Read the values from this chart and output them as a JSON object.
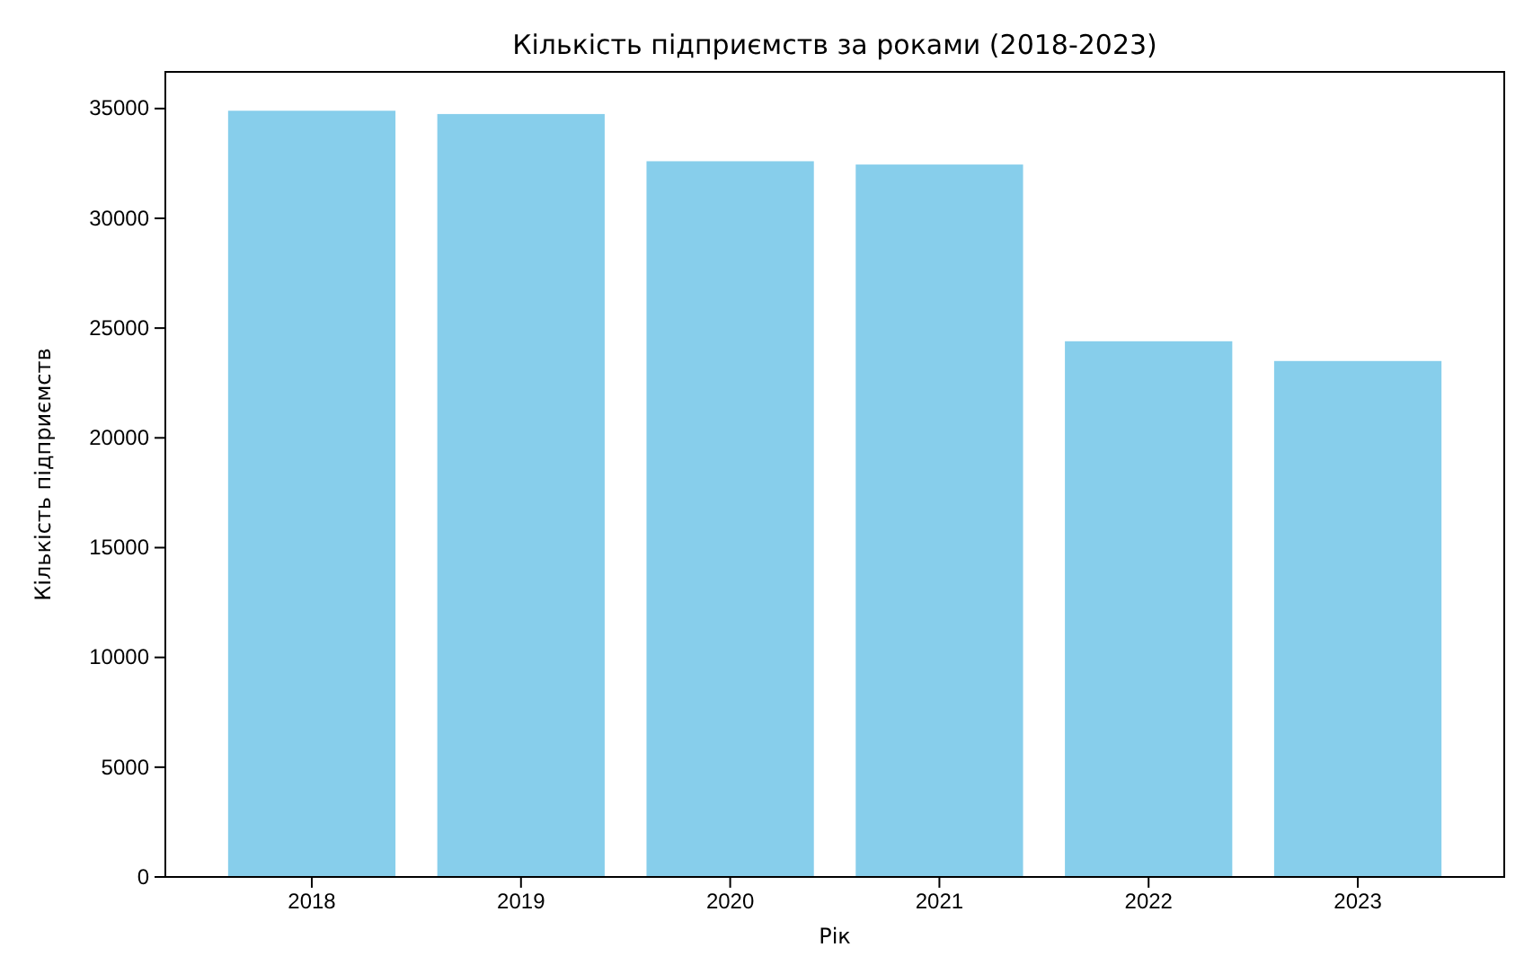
{
  "chart_data": {
    "type": "bar",
    "title": "Кількість підприємств за роками (2018-2023)",
    "xlabel": "Рік",
    "ylabel": "Кількість підприємств",
    "categories": [
      "2018",
      "2019",
      "2020",
      "2021",
      "2022",
      "2023"
    ],
    "values": [
      34900,
      34750,
      32600,
      32450,
      24400,
      23500
    ],
    "color": "#87ceeb",
    "ylim": [
      0,
      36670
    ],
    "yticks": [
      0,
      5000,
      10000,
      15000,
      20000,
      25000,
      30000,
      35000
    ],
    "grid": false
  }
}
